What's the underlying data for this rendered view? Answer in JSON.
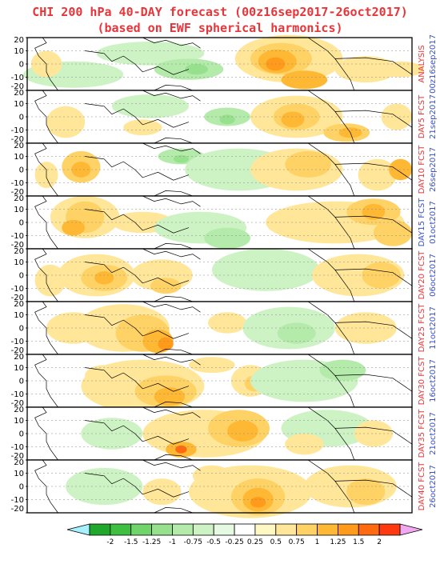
{
  "title_line1": "CHI 200 hPa 40-DAY forecast (00z16sep2017-26oct2017)",
  "title_line2": "(based on EWF spherical harmonics)",
  "chart_data": {
    "type": "heatmap",
    "title": "CHI 200 hPa 40-DAY forecast (00z16sep2017-26oct2017)",
    "subtitle": "(based on EWF spherical harmonics)",
    "y_ticks": [
      20,
      10,
      0,
      -10,
      -20
    ],
    "ylim": [
      -20,
      20
    ],
    "grid": true,
    "panels": [
      {
        "label_kind": "ANALYSIS",
        "kind_color": "#e8353a",
        "date": "00z16sep2017",
        "date_color": "#3a4fcf"
      },
      {
        "label_kind": "DAY5 FCST",
        "kind_color": "#e8353a",
        "date": "21sep2017",
        "date_color": "#3a4fcf"
      },
      {
        "label_kind": "DAY10 FCST",
        "kind_color": "#e8353a",
        "date": "26sep2017",
        "date_color": "#3a4fcf"
      },
      {
        "label_kind": "DAY15 FCST",
        "kind_color": "#3a4fcf",
        "date": "01oct2017",
        "date_color": "#3a4fcf"
      },
      {
        "label_kind": "DAY20 FCST",
        "kind_color": "#e8353a",
        "date": "06oct2017",
        "date_color": "#3a4fcf"
      },
      {
        "label_kind": "DAY25 FCST",
        "kind_color": "#e8353a",
        "date": "11oct2017",
        "date_color": "#3a4fcf"
      },
      {
        "label_kind": "DAY30 FCST",
        "kind_color": "#e8353a",
        "date": "16oct2017",
        "date_color": "#3a4fcf"
      },
      {
        "label_kind": "DAY35 FCST",
        "kind_color": "#e8353a",
        "date": "21oct2017",
        "date_color": "#3a4fcf"
      },
      {
        "label_kind": "DAY40 FCST",
        "kind_color": "#e8353a",
        "date": "26oct2017",
        "date_color": "#3a4fcf"
      }
    ],
    "colorbar": {
      "levels": [
        "-2",
        "-1.5",
        "-1.25",
        "-1",
        "-0.75",
        "-0.5",
        "-0.25",
        "0.25",
        "0.5",
        "0.75",
        "1",
        "1.25",
        "1.5",
        "2"
      ],
      "colors": [
        "#1fa82a",
        "#3fbf3f",
        "#6fd46a",
        "#97e08d",
        "#b4ebab",
        "#cdf3c4",
        "#e6f9e1",
        "#ffffff",
        "#fff8c4",
        "#ffe699",
        "#ffd266",
        "#ffb833",
        "#ff9a1a",
        "#ff6a10",
        "#ff3a10"
      ],
      "under_color": "#a6f0ff",
      "over_color": "#f0a8f0"
    }
  }
}
